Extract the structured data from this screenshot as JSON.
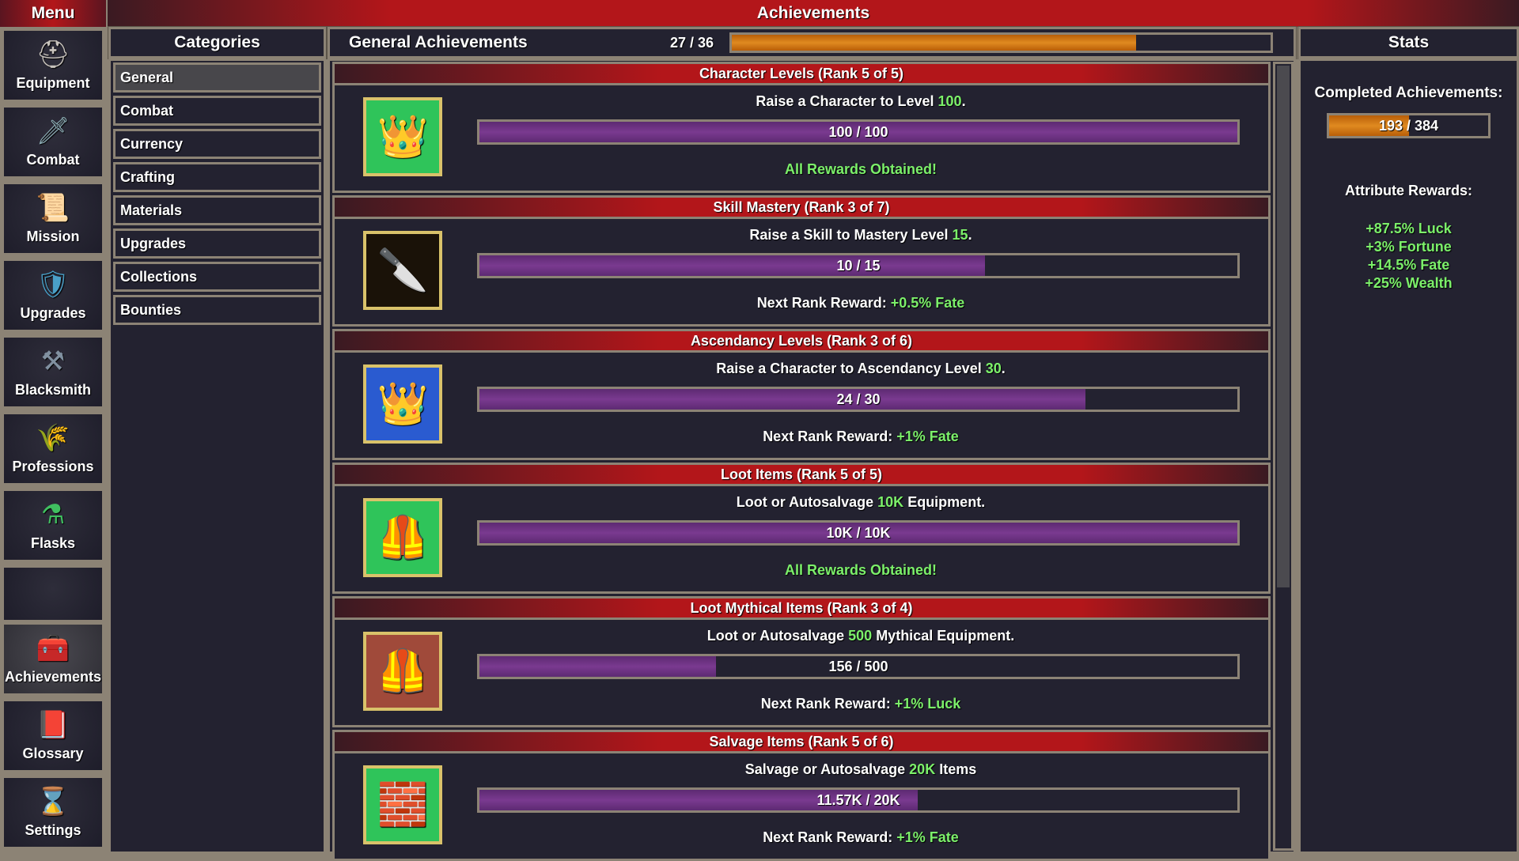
{
  "window": {
    "menu_label": "Menu",
    "title": "Achievements"
  },
  "sidebar": {
    "items": [
      {
        "label": "Equipment",
        "icon": "helmet-icon",
        "glyph": "⛑",
        "color": "#c9c4bd"
      },
      {
        "label": "Combat",
        "icon": "sword-icon",
        "glyph": "🗡",
        "color": "#8fb0b8"
      },
      {
        "label": "Mission",
        "icon": "scroll-icon",
        "glyph": "📜",
        "color": "#e0a060"
      },
      {
        "label": "Upgrades",
        "icon": "shield-icon",
        "glyph": "🛡",
        "color": "#4aa0c8"
      },
      {
        "label": "Blacksmith",
        "icon": "anvil-icon",
        "glyph": "⚒",
        "color": "#8090a0"
      },
      {
        "label": "Professions",
        "icon": "wheat-icon",
        "glyph": "🌾",
        "color": "#f0b020"
      },
      {
        "label": "Flasks",
        "icon": "flask-icon",
        "glyph": "⚗",
        "color": "#40c060"
      },
      {
        "label": "",
        "icon": "",
        "glyph": "",
        "color": ""
      },
      {
        "label": "Achievements",
        "icon": "chest-icon",
        "glyph": "🧰",
        "color": "#d8b040",
        "active": true
      },
      {
        "label": "Glossary",
        "icon": "book-icon",
        "glyph": "📕",
        "color": "#d03030"
      },
      {
        "label": "Settings",
        "icon": "hourglass-icon",
        "glyph": "⌛",
        "color": "#c0b080"
      }
    ]
  },
  "categories": {
    "title": "Categories",
    "items": [
      "General",
      "Combat",
      "Currency",
      "Crafting",
      "Materials",
      "Upgrades",
      "Collections",
      "Bounties"
    ],
    "selected": "General"
  },
  "main": {
    "title": "General Achievements",
    "progress_text": "27 / 36",
    "progress_fraction": 0.75,
    "achievements": [
      {
        "title": "Character Levels (Rank 5 of 5)",
        "desc_pre": "Raise a Character to Level ",
        "desc_hl": "100",
        "desc_post": ".",
        "progress": "100 / 100",
        "fraction": 1.0,
        "reward_pre": "",
        "reward_hl": "All Rewards Obtained!",
        "icon": "tiara-icon",
        "glyph": "👑",
        "bg": "#2fc45a"
      },
      {
        "title": "Skill Mastery (Rank 3 of 7)",
        "desc_pre": "Raise a Skill to Mastery Level ",
        "desc_hl": "15",
        "desc_post": ".",
        "progress": "10 / 15",
        "fraction": 0.667,
        "reward_pre": "Next Rank Reward: ",
        "reward_hl": "+0.5% Fate",
        "icon": "flaming-blade-icon",
        "glyph": "🔪",
        "bg": "#1a1208"
      },
      {
        "title": "Ascendancy Levels (Rank 3 of 6)",
        "desc_pre": "Raise a Character to Ascendancy Level ",
        "desc_hl": "30",
        "desc_post": ".",
        "progress": "24 / 30",
        "fraction": 0.8,
        "reward_pre": "Next Rank Reward: ",
        "reward_hl": "+1% Fate",
        "icon": "crown-icon",
        "glyph": "👑",
        "bg": "#2a5bd0"
      },
      {
        "title": "Loot Items (Rank 5 of 5)",
        "desc_pre": "Loot or Autosalvage ",
        "desc_hl": "10K",
        "desc_post": " Equipment.",
        "progress": "10K / 10K",
        "fraction": 1.0,
        "reward_pre": "",
        "reward_hl": "All Rewards Obtained!",
        "icon": "armor-icon",
        "glyph": "🦺",
        "bg": "#2fc45a"
      },
      {
        "title": "Loot Mythical Items (Rank 3 of 4)",
        "desc_pre": "Loot or Autosalvage ",
        "desc_hl": "500",
        "desc_post": " Mythical Equipment.",
        "progress": "156 / 500",
        "fraction": 0.312,
        "reward_pre": "Next Rank Reward: ",
        "reward_hl": "+1% Luck",
        "icon": "mythical-armor-icon",
        "glyph": "🦺",
        "bg": "#a04a3a"
      },
      {
        "title": "Salvage Items (Rank 5 of 6)",
        "desc_pre": "Salvage or Autosalvage ",
        "desc_hl": "20K",
        "desc_post": " Items",
        "progress": "11.57K / 20K",
        "fraction": 0.5785,
        "reward_pre": "Next Rank Reward: ",
        "reward_hl": "+1% Fate",
        "icon": "ingot-icon",
        "glyph": "🧱",
        "bg": "#2fc45a"
      }
    ]
  },
  "stats": {
    "title": "Stats",
    "completed_label": "Completed Achievements:",
    "completed_text": "193 / 384",
    "completed_fraction": 0.5026,
    "rewards_label": "Attribute Rewards:",
    "rewards": [
      "+87.5% Luck",
      "+3% Fortune",
      "+14.5% Fate",
      "+25% Wealth"
    ]
  },
  "colors": {
    "accent_red": "#b3161a",
    "highlight_green": "#7cf06a",
    "progress_purple": "#7a3a90",
    "progress_orange": "#d97a10",
    "border": "#8c8375"
  }
}
